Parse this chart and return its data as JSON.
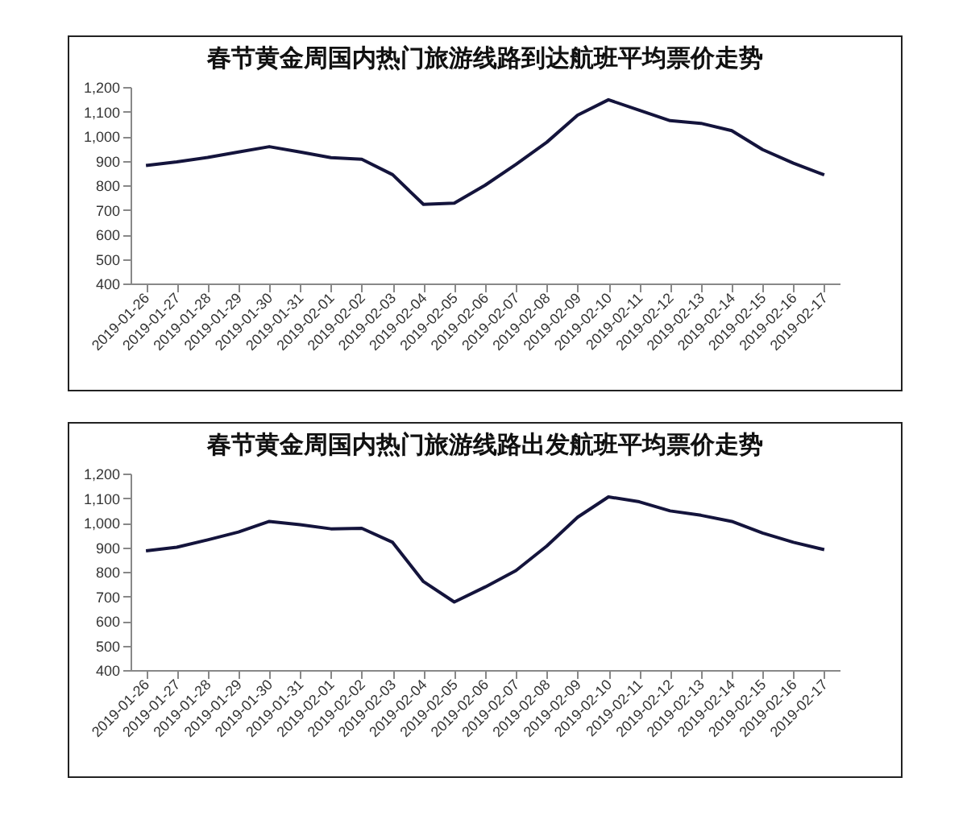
{
  "chart_data": [
    {
      "type": "line",
      "title": "春节黄金周国内热门旅游线路到达航班平均票价走势",
      "categories": [
        "2019-01-26",
        "2019-01-27",
        "2019-01-28",
        "2019-01-29",
        "2019-01-30",
        "2019-01-31",
        "2019-02-01",
        "2019-02-02",
        "2019-02-03",
        "2019-02-04",
        "2019-02-05",
        "2019-02-06",
        "2019-02-07",
        "2019-02-08",
        "2019-02-09",
        "2019-02-10",
        "2019-02-11",
        "2019-02-12",
        "2019-02-13",
        "2019-02-14",
        "2019-02-15",
        "2019-02-16",
        "2019-02-17"
      ],
      "series": [
        {
          "color": "#14143c",
          "values": [
            880,
            895,
            913,
            935,
            957,
            935,
            912,
            906,
            843,
            722,
            727,
            800,
            885,
            975,
            1085,
            1148,
            1105,
            1063,
            1052,
            1022,
            945,
            890,
            842
          ]
        }
      ],
      "ylim": [
        400,
        1200
      ],
      "yticks": [
        {
          "value": 400,
          "label": "400"
        },
        {
          "value": 500,
          "label": "500"
        },
        {
          "value": 600,
          "label": "600"
        },
        {
          "value": 700,
          "label": "700"
        },
        {
          "value": 800,
          "label": "800"
        },
        {
          "value": 900,
          "label": "900"
        },
        {
          "value": 1000,
          "label": "1,000"
        },
        {
          "value": 1100,
          "label": "1,100"
        },
        {
          "value": 1200,
          "label": "1,200"
        }
      ],
      "grid": false,
      "legend": false,
      "marker": "none",
      "line_style": "solid"
    },
    {
      "type": "line",
      "title": "春节黄金周国内热门旅游线路出发航班平均票价走势",
      "categories": [
        "2019-01-26",
        "2019-01-27",
        "2019-01-28",
        "2019-01-29",
        "2019-01-30",
        "2019-01-31",
        "2019-02-01",
        "2019-02-02",
        "2019-02-03",
        "2019-02-04",
        "2019-02-05",
        "2019-02-06",
        "2019-02-07",
        "2019-02-08",
        "2019-02-09",
        "2019-02-10",
        "2019-02-11",
        "2019-02-12",
        "2019-02-13",
        "2019-02-14",
        "2019-02-15",
        "2019-02-16",
        "2019-02-17"
      ],
      "series": [
        {
          "color": "#14143c",
          "values": [
            885,
            900,
            930,
            962,
            1005,
            992,
            975,
            977,
            920,
            760,
            677,
            738,
            805,
            905,
            1022,
            1105,
            1085,
            1048,
            1030,
            1005,
            958,
            920,
            890
          ]
        }
      ],
      "ylim": [
        400,
        1200
      ],
      "yticks": [
        {
          "value": 400,
          "label": "400"
        },
        {
          "value": 500,
          "label": "500"
        },
        {
          "value": 600,
          "label": "600"
        },
        {
          "value": 700,
          "label": "700"
        },
        {
          "value": 800,
          "label": "800"
        },
        {
          "value": 900,
          "label": "900"
        },
        {
          "value": 1000,
          "label": "1,000"
        },
        {
          "value": 1100,
          "label": "1,100"
        },
        {
          "value": 1200,
          "label": "1,200"
        }
      ],
      "grid": false,
      "legend": false,
      "marker": "none",
      "line_style": "solid"
    }
  ]
}
